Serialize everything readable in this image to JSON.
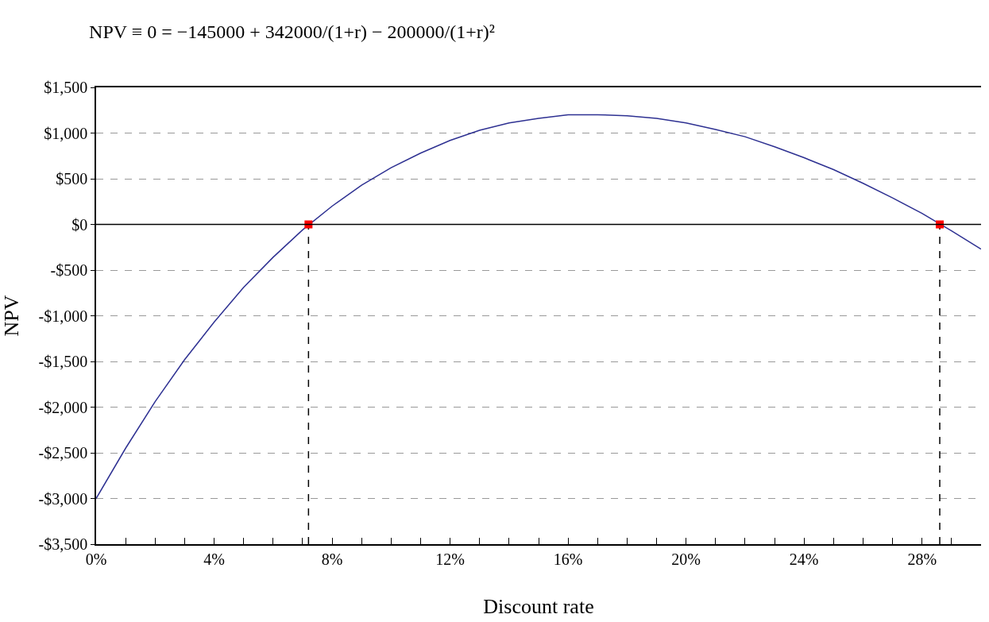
{
  "chart_data": {
    "type": "line",
    "title": "NPV ≡ 0 = −145000 + 342000/(1+r) − 200000/(1+r)²",
    "xlabel": "Discount rate",
    "ylabel": "NPV",
    "xlim": [
      0,
      30
    ],
    "xticks": [
      {
        "value": 0,
        "label": "0%"
      },
      {
        "value": 1,
        "label": null
      },
      {
        "value": 2,
        "label": null
      },
      {
        "value": 3,
        "label": null
      },
      {
        "value": 4,
        "label": "4%"
      },
      {
        "value": 5,
        "label": null
      },
      {
        "value": 6,
        "label": null
      },
      {
        "value": 7,
        "label": null
      },
      {
        "value": 8,
        "label": "8%"
      },
      {
        "value": 9,
        "label": null
      },
      {
        "value": 10,
        "label": null
      },
      {
        "value": 11,
        "label": null
      },
      {
        "value": 12,
        "label": "12%"
      },
      {
        "value": 13,
        "label": null
      },
      {
        "value": 14,
        "label": null
      },
      {
        "value": 15,
        "label": null
      },
      {
        "value": 16,
        "label": "16%"
      },
      {
        "value": 17,
        "label": null
      },
      {
        "value": 18,
        "label": null
      },
      {
        "value": 19,
        "label": null
      },
      {
        "value": 20,
        "label": "20%"
      },
      {
        "value": 21,
        "label": null
      },
      {
        "value": 22,
        "label": null
      },
      {
        "value": 23,
        "label": null
      },
      {
        "value": 24,
        "label": "24%"
      },
      {
        "value": 25,
        "label": null
      },
      {
        "value": 26,
        "label": null
      },
      {
        "value": 27,
        "label": null
      },
      {
        "value": 28,
        "label": "28%"
      },
      {
        "value": 29,
        "label": null
      }
    ],
    "ylim": [
      -3500,
      1500
    ],
    "yticks": [
      {
        "value": 1500,
        "label": "$1,500"
      },
      {
        "value": 1000,
        "label": "$1,000"
      },
      {
        "value": 500,
        "label": "$500"
      },
      {
        "value": 0,
        "label": "$0"
      },
      {
        "value": -500,
        "label": "-$500"
      },
      {
        "value": -1000,
        "label": "-$1,000"
      },
      {
        "value": -1500,
        "label": "-$1,500"
      },
      {
        "value": -2000,
        "label": "-$2,000"
      },
      {
        "value": -2500,
        "label": "-$2,500"
      },
      {
        "value": -3000,
        "label": "-$3,000"
      },
      {
        "value": -3500,
        "label": "-$3,500"
      }
    ],
    "grid": "y",
    "ref_lines": [
      {
        "axis": "y",
        "value": 0,
        "color": "#000000",
        "line_style": "solid"
      }
    ],
    "series": [
      {
        "color": "#2e3192",
        "marker": "none",
        "line_style": "solid",
        "x": [
          0,
          1,
          2,
          3,
          4,
          5,
          6,
          7,
          8,
          9,
          10,
          11,
          12,
          13,
          14,
          15,
          16,
          17,
          18,
          19,
          20,
          21,
          22,
          23,
          24,
          25,
          26,
          27,
          28,
          29,
          30
        ],
        "values": [
          -3000,
          -2450,
          -1940,
          -1480,
          -1070,
          -690,
          -360,
          -60,
          200,
          430,
          620,
          780,
          920,
          1030,
          1110,
          1160,
          1200,
          1200,
          1190,
          1160,
          1110,
          1040,
          960,
          850,
          730,
          600,
          450,
          290,
          120,
          -70,
          -270
        ]
      },
      {
        "type": "line",
        "color": "#000000",
        "marker": "none",
        "line_style": "dashed",
        "x": [
          7.2,
          7.2
        ],
        "values": [
          -3500,
          0
        ]
      },
      {
        "type": "line",
        "color": "#000000",
        "marker": "none",
        "line_style": "dashed",
        "x": [
          28.6,
          28.6
        ],
        "values": [
          -3500,
          0
        ]
      },
      {
        "type": "scatter",
        "color": "#ff0000",
        "marker": "square",
        "x": [
          7.2,
          28.6
        ],
        "values": [
          0,
          0
        ]
      }
    ]
  }
}
